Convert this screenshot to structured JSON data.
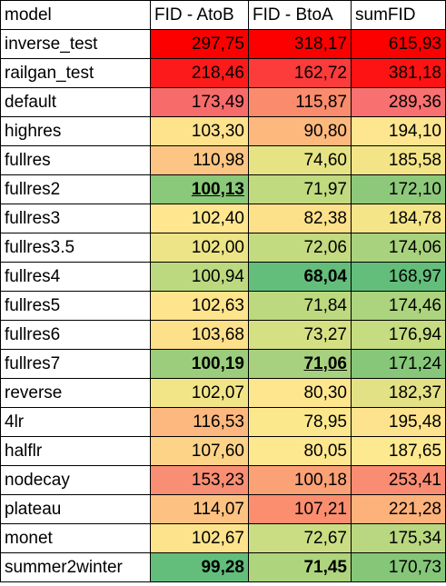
{
  "columns": [
    "model",
    "FID - AtoB",
    "FID - BtoA",
    "sumFID"
  ],
  "rows": [
    {
      "model": "inverse_test",
      "atob": "297,75",
      "btoa": "318,17",
      "sum": "615,93",
      "colors": [
        "#fc0000",
        "#fc0000",
        "#fc0000"
      ]
    },
    {
      "model": "railgan_test",
      "atob": "218,46",
      "btoa": "162,72",
      "sum": "381,18",
      "colors": [
        "#fc1a1a",
        "#fc3b3b",
        "#fd1313"
      ]
    },
    {
      "model": "default",
      "atob": "173,49",
      "btoa": "115,87",
      "sum": "289,36",
      "colors": [
        "#f86b6b",
        "#fa8b6d",
        "#f97070"
      ]
    },
    {
      "model": "highres",
      "atob": "103,30",
      "btoa": "90,80",
      "sum": "194,10",
      "colors": [
        "#fee28c",
        "#fdb87e",
        "#fde68f"
      ]
    },
    {
      "model": "fullres",
      "atob": "110,98",
      "btoa": "74,60",
      "sum": "185,58",
      "colors": [
        "#fdc583",
        "#e6e384",
        "#f2e487"
      ]
    },
    {
      "model": "fullres2",
      "atob": "100,13",
      "btoa": "71,97",
      "sum": "172,10",
      "colors": [
        "#8ac87a",
        "#c0da80",
        "#8ec97b"
      ],
      "bold": {
        "atob": true
      },
      "underline": {
        "atob": true
      }
    },
    {
      "model": "fullres3",
      "atob": "102,40",
      "btoa": "82,38",
      "sum": "184,78",
      "colors": [
        "#ffe68f",
        "#fde08a",
        "#f4e588"
      ]
    },
    {
      "model": "fullres3.5",
      "atob": "102,00",
      "btoa": "72,06",
      "sum": "174,06",
      "colors": [
        "#ece486",
        "#c2da80",
        "#a9d27e"
      ]
    },
    {
      "model": "fullres4",
      "atob": "100,94",
      "btoa": "68,04",
      "sum": "168,97",
      "colors": [
        "#bcd980",
        "#63be7b",
        "#63be7b"
      ],
      "bold": {
        "btoa": true
      }
    },
    {
      "model": "fullres5",
      "atob": "102,63",
      "btoa": "71,84",
      "sum": "174,46",
      "colors": [
        "#fde48d",
        "#bcd97f",
        "#acd37e"
      ]
    },
    {
      "model": "fullres6",
      "atob": "103,68",
      "btoa": "73,27",
      "sum": "176,94",
      "colors": [
        "#fde08a",
        "#d5e083",
        "#c5dc81"
      ]
    },
    {
      "model": "fullres7",
      "atob": "100,19",
      "btoa": "71,06",
      "sum": "171,24",
      "colors": [
        "#9bcd7c",
        "#a7d17e",
        "#87c77a"
      ],
      "bold": {
        "atob": true,
        "btoa": true
      },
      "underline": {
        "btoa": true
      }
    },
    {
      "model": "reverse",
      "atob": "102,07",
      "btoa": "80,30",
      "sum": "182,37",
      "colors": [
        "#f2e588",
        "#fde68e",
        "#e3e185"
      ]
    },
    {
      "model": "4lr",
      "atob": "116,53",
      "btoa": "78,95",
      "sum": "195,48",
      "colors": [
        "#fcb87e",
        "#fce88c",
        "#fde38d"
      ]
    },
    {
      "model": "halflr",
      "atob": "107,60",
      "btoa": "80,05",
      "sum": "187,65",
      "colors": [
        "#fdd388",
        "#fde78f",
        "#fde98f"
      ]
    },
    {
      "model": "nodecay",
      "atob": "153,23",
      "btoa": "100,18",
      "sum": "253,41",
      "colors": [
        "#f88e73",
        "#fba176",
        "#f98c72"
      ]
    },
    {
      "model": "plateau",
      "atob": "114,07",
      "btoa": "107,21",
      "sum": "221,28",
      "colors": [
        "#fdc281",
        "#fb8e6f",
        "#fdb17b"
      ]
    },
    {
      "model": "monet",
      "atob": "102,67",
      "btoa": "72,67",
      "sum": "175,34",
      "colors": [
        "#fde38b",
        "#cbdd82",
        "#b8d780"
      ]
    },
    {
      "model": "summer2winter",
      "atob": "99,28",
      "btoa": "71,45",
      "sum": "170,73",
      "colors": [
        "#63be7b",
        "#aed47e",
        "#85c679"
      ],
      "bold": {
        "atob": true,
        "btoa": true
      }
    }
  ]
}
